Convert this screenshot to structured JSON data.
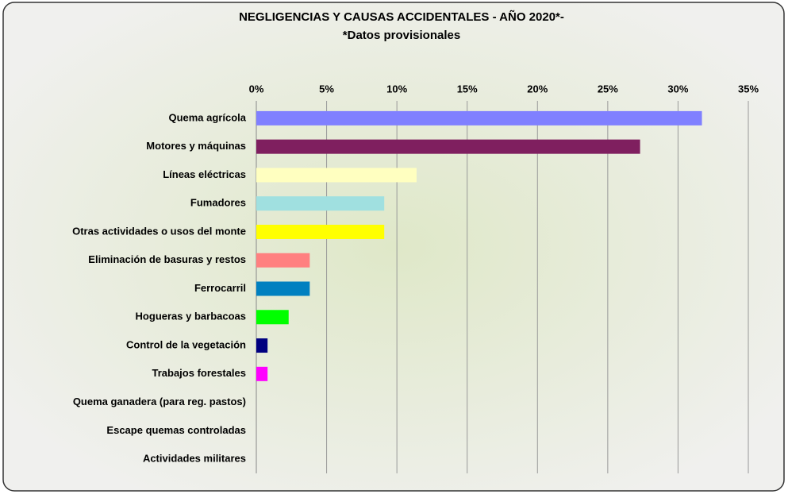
{
  "chart_data": {
    "type": "bar",
    "orientation": "horizontal",
    "title": "NEGLIGENCIAS Y CAUSAS ACCIDENTALES - AÑO 2020*-",
    "subtitle": "*Datos provisionales",
    "categories": [
      "Quema agrícola",
      "Motores y máquinas",
      "Líneas eléctricas",
      "Fumadores",
      "Otras actividades o usos del monte",
      "Eliminación de basuras y restos",
      "Ferrocarril",
      "Hogueras y barbacoas",
      "Control de la vegetación",
      "Trabajos forestales",
      "Quema ganadera (para reg. pastos)",
      "Escape quemas controladas",
      "Actividades militares"
    ],
    "values": [
      31.7,
      27.3,
      11.4,
      9.1,
      9.1,
      3.8,
      3.8,
      2.3,
      0.8,
      0.8,
      0,
      0,
      0
    ],
    "colors": [
      "#8080ff",
      "#7f1f5f",
      "#ffffc0",
      "#a0e0e0",
      "#ffff00",
      "#ff8080",
      "#0080c0",
      "#00ff00",
      "#000080",
      "#ff00ff",
      "#808080",
      "#808080",
      "#808080"
    ],
    "xlim": [
      0,
      35
    ],
    "xticks": [
      {
        "value": 0,
        "label": "0%"
      },
      {
        "value": 5,
        "label": "5%"
      },
      {
        "value": 10,
        "label": "10%"
      },
      {
        "value": 15,
        "label": "15%"
      },
      {
        "value": 20,
        "label": "20%"
      },
      {
        "value": 25,
        "label": "25%"
      },
      {
        "value": 30,
        "label": "30%"
      },
      {
        "value": 35,
        "label": "35%"
      }
    ],
    "grid": true
  }
}
